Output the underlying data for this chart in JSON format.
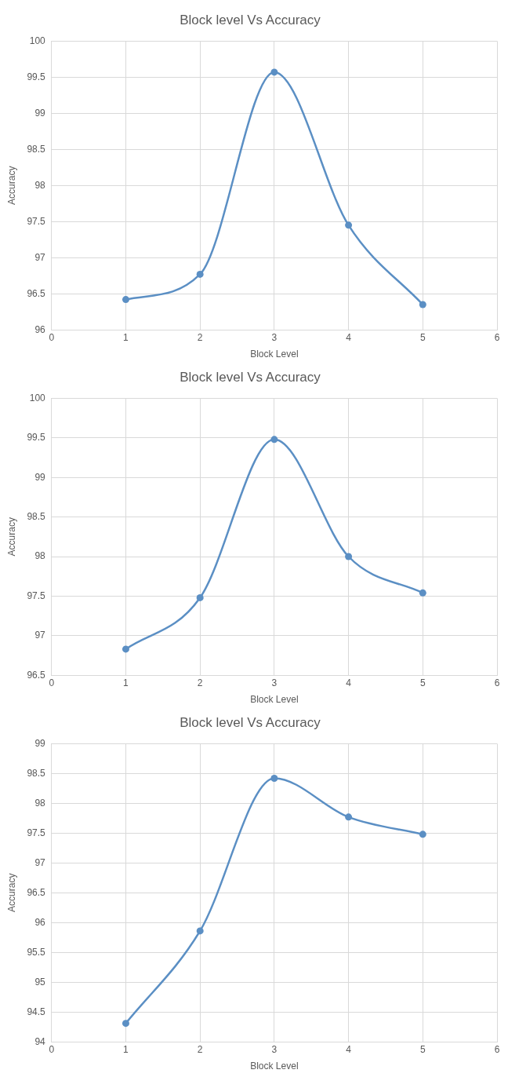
{
  "chart_data": [
    {
      "type": "line",
      "title": "Block level Vs Accuracy",
      "xlabel": "Block Level",
      "ylabel": "Accuracy",
      "x": [
        1,
        2,
        3,
        4,
        5
      ],
      "series": [
        {
          "color": "#5b8fc4",
          "values": [
            96.42,
            96.77,
            99.57,
            97.45,
            96.35
          ]
        }
      ],
      "xlim": [
        0,
        6
      ],
      "xticks": [
        0,
        1,
        2,
        3,
        4,
        5,
        6
      ],
      "ylim": [
        96,
        100
      ],
      "yticks": [
        96,
        96.5,
        97,
        97.5,
        98,
        98.5,
        99,
        99.5,
        100
      ],
      "grid": true,
      "marker": "circle",
      "line_style": "solid"
    },
    {
      "type": "line",
      "title": "Block level Vs Accuracy",
      "xlabel": "Block Level",
      "ylabel": "Accuracy",
      "x": [
        1,
        2,
        3,
        4,
        5
      ],
      "series": [
        {
          "color": "#5b8fc4",
          "values": [
            96.83,
            97.48,
            99.48,
            98.0,
            97.54
          ]
        }
      ],
      "xlim": [
        0,
        6
      ],
      "xticks": [
        0,
        1,
        2,
        3,
        4,
        5,
        6
      ],
      "ylim": [
        96.5,
        100
      ],
      "yticks": [
        96.5,
        97,
        97.5,
        98,
        98.5,
        99,
        99.5,
        100
      ],
      "grid": true,
      "marker": "circle",
      "line_style": "solid"
    },
    {
      "type": "line",
      "title": "Block level Vs Accuracy",
      "xlabel": "Block Level",
      "ylabel": "Accuracy",
      "x": [
        1,
        2,
        3,
        4,
        5
      ],
      "series": [
        {
          "color": "#5b8fc4",
          "values": [
            94.31,
            95.86,
            98.42,
            97.77,
            97.48
          ]
        }
      ],
      "xlim": [
        0,
        6
      ],
      "xticks": [
        0,
        1,
        2,
        3,
        4,
        5,
        6
      ],
      "ylim": [
        94,
        99
      ],
      "yticks": [
        94,
        94.5,
        95,
        95.5,
        96,
        96.5,
        97,
        97.5,
        98,
        98.5,
        99
      ],
      "grid": true,
      "marker": "circle",
      "line_style": "solid"
    }
  ]
}
